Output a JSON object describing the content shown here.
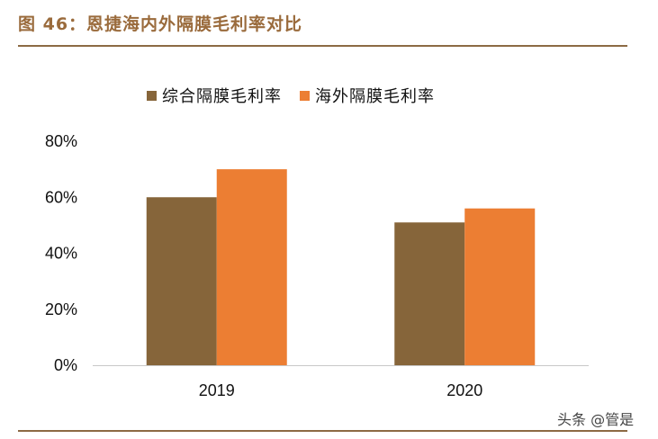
{
  "header": {
    "title": "图 46：恩捷海内外隔膜毛利率对比"
  },
  "chart_data": {
    "type": "bar",
    "title": "",
    "xlabel": "",
    "ylabel": "",
    "categories": [
      "2019",
      "2020"
    ],
    "series": [
      {
        "name": "综合隔膜毛利率",
        "values": [
          60,
          51
        ],
        "color": "#86653a"
      },
      {
        "name": "海外隔膜毛利率",
        "values": [
          70,
          56
        ],
        "color": "#ec7e33"
      }
    ],
    "ylim": [
      0,
      80
    ],
    "yticks": [
      0,
      20,
      40,
      60,
      80
    ],
    "ytick_labels": [
      "0%",
      "20%",
      "40%",
      "60%",
      "80%"
    ],
    "grid": false,
    "legend_position": "top"
  },
  "watermark": {
    "text": "头条 @管是"
  }
}
